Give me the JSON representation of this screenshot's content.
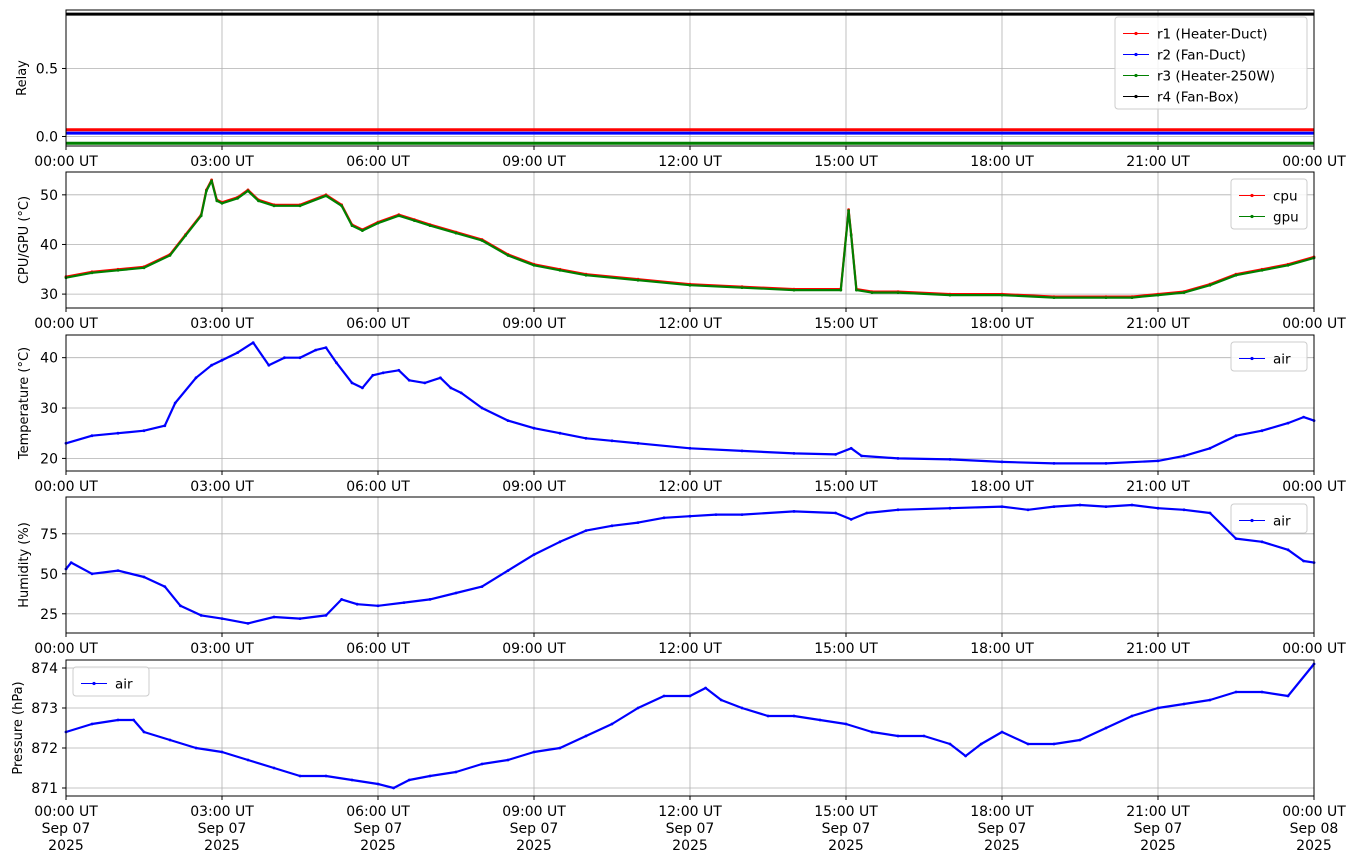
{
  "x_tick_labels": [
    "00:00 UT",
    "03:00 UT",
    "06:00 UT",
    "09:00 UT",
    "12:00 UT",
    "15:00 UT",
    "18:00 UT",
    "21:00 UT",
    "00:00 UT"
  ],
  "x_date_labels": [
    "Sep 07",
    "Sep 07",
    "Sep 07",
    "Sep 07",
    "Sep 07",
    "Sep 07",
    "Sep 07",
    "Sep 07",
    "Sep 08"
  ],
  "x_year_labels": [
    "2025",
    "2025",
    "2025",
    "2025",
    "2025",
    "2025",
    "2025",
    "2025",
    "2025"
  ],
  "chart_data": [
    {
      "type": "line",
      "ylabel": "Relay",
      "x_unit": "hours since 2025-09-07 00:00 UT",
      "xlim": [
        0,
        24
      ],
      "ylim": [
        -0.07,
        0.93
      ],
      "yticks": [
        0.0,
        0.5
      ],
      "ytick_labels": [
        "0.0",
        "0.5"
      ],
      "legend_loc": "upper right",
      "grid": true,
      "series": [
        {
          "name": "r1 (Heater-Duct)",
          "color": "#ff0000",
          "x": [
            0,
            24
          ],
          "y": [
            0.05,
            0.05
          ]
        },
        {
          "name": "r2 (Fan-Duct)",
          "color": "#0000ff",
          "x": [
            0,
            24
          ],
          "y": [
            0.025,
            0.025
          ]
        },
        {
          "name": "r3 (Heater-250W)",
          "color": "#008000",
          "x": [
            0,
            24
          ],
          "y": [
            -0.05,
            -0.05
          ]
        },
        {
          "name": "r4 (Fan-Box)",
          "color": "#000000",
          "x": [
            0,
            24
          ],
          "y": [
            0.9,
            0.9
          ]
        }
      ]
    },
    {
      "type": "line",
      "ylabel": "CPU/GPU (°C)",
      "xlim": [
        0,
        24
      ],
      "ylim": [
        27.2,
        54.6
      ],
      "yticks": [
        30,
        40,
        50
      ],
      "ytick_labels": [
        "30",
        "40",
        "50"
      ],
      "legend_loc": "upper right",
      "grid": true,
      "series": [
        {
          "name": "cpu",
          "color": "#ff0000",
          "x": [
            0,
            0.5,
            1,
            1.5,
            2,
            2.3,
            2.6,
            2.7,
            2.8,
            2.9,
            3.0,
            3.3,
            3.5,
            3.7,
            4.0,
            4.5,
            5.0,
            5.3,
            5.5,
            5.7,
            6.0,
            6.4,
            6.7,
            7.0,
            7.5,
            8.0,
            8.5,
            9.0,
            9.5,
            10,
            11,
            12,
            13,
            14,
            14.9,
            15.05,
            15.1,
            15.2,
            15.5,
            16,
            17,
            18,
            19,
            20,
            20.5,
            21,
            21.5,
            22,
            22.5,
            23,
            23.5,
            24
          ],
          "y": [
            33.5,
            34.5,
            35,
            35.5,
            38,
            42,
            46,
            51,
            53,
            49,
            48.5,
            49.5,
            51,
            49,
            48,
            48,
            50,
            48,
            44,
            43,
            44.5,
            46,
            45,
            44,
            42.5,
            41,
            38,
            36,
            35,
            34,
            33,
            32,
            31.5,
            31,
            31,
            47,
            42,
            31,
            30.5,
            30.5,
            30,
            30,
            29.5,
            29.5,
            29.5,
            30,
            30.5,
            32,
            34,
            35,
            36,
            37.5
          ]
        },
        {
          "name": "gpu",
          "color": "#008000",
          "x": [
            0,
            0.5,
            1,
            1.5,
            2,
            2.3,
            2.6,
            2.7,
            2.8,
            2.9,
            3.0,
            3.3,
            3.5,
            3.7,
            4.0,
            4.5,
            5.0,
            5.3,
            5.5,
            5.7,
            6.0,
            6.4,
            6.7,
            7.0,
            7.5,
            8.0,
            8.5,
            9.0,
            9.5,
            10,
            11,
            12,
            13,
            14,
            14.9,
            15.05,
            15.1,
            15.2,
            15.5,
            16,
            17,
            18,
            19,
            20,
            20.5,
            21,
            21.5,
            22,
            22.5,
            23,
            23.5,
            24
          ],
          "y": [
            33.3,
            34.3,
            34.8,
            35.3,
            37.8,
            41.8,
            45.8,
            50.8,
            52.8,
            48.8,
            48.3,
            49.3,
            50.8,
            48.8,
            47.8,
            47.8,
            49.8,
            47.8,
            43.8,
            42.8,
            44.3,
            45.8,
            44.8,
            43.8,
            42.3,
            40.8,
            37.8,
            35.8,
            34.8,
            33.8,
            32.8,
            31.8,
            31.3,
            30.8,
            30.8,
            46.8,
            41.8,
            30.8,
            30.3,
            30.3,
            29.8,
            29.8,
            29.3,
            29.3,
            29.3,
            29.8,
            30.3,
            31.8,
            33.8,
            34.8,
            35.8,
            37.3
          ]
        }
      ]
    },
    {
      "type": "line",
      "ylabel": "Temperature (°C)",
      "xlim": [
        0,
        24
      ],
      "ylim": [
        17.5,
        44.5
      ],
      "yticks": [
        20,
        30,
        40
      ],
      "ytick_labels": [
        "20",
        "30",
        "40"
      ],
      "legend_loc": "upper right",
      "grid": true,
      "series": [
        {
          "name": "air",
          "color": "#0000ff",
          "x": [
            0,
            0.5,
            1,
            1.5,
            1.9,
            2.1,
            2.5,
            2.8,
            3.0,
            3.3,
            3.6,
            3.9,
            4.2,
            4.5,
            4.8,
            5.0,
            5.2,
            5.5,
            5.7,
            5.9,
            6.1,
            6.4,
            6.6,
            6.9,
            7.2,
            7.4,
            7.6,
            8.0,
            8.5,
            9.0,
            9.5,
            10.0,
            10.5,
            11,
            12,
            13,
            14,
            14.8,
            15.1,
            15.3,
            16,
            17,
            18,
            19,
            20,
            21,
            21.5,
            22,
            22.5,
            23,
            23.5,
            23.8,
            24
          ],
          "y": [
            23,
            24.5,
            25,
            25.5,
            26.5,
            31,
            36,
            38.5,
            39.5,
            41,
            43,
            38.5,
            40,
            40,
            41.5,
            42,
            39,
            35,
            34,
            36.5,
            37,
            37.5,
            35.5,
            35,
            36,
            34,
            33,
            30,
            27.5,
            26,
            25,
            24,
            23.5,
            23,
            22,
            21.5,
            21,
            20.8,
            22,
            20.5,
            20,
            19.8,
            19.3,
            19,
            19,
            19.5,
            20.5,
            22,
            24.5,
            25.5,
            27,
            28.2,
            27.5
          ]
        }
      ]
    },
    {
      "type": "line",
      "ylabel": "Humidity (%)",
      "xlim": [
        0,
        24
      ],
      "ylim": [
        13,
        98
      ],
      "yticks": [
        25,
        50,
        75
      ],
      "ytick_labels": [
        "25",
        "50",
        "75"
      ],
      "legend_loc": "upper right",
      "grid": true,
      "series": [
        {
          "name": "air",
          "color": "#0000ff",
          "x": [
            0,
            0.1,
            0.5,
            1.0,
            1.5,
            1.9,
            2.2,
            2.6,
            3.0,
            3.5,
            4.0,
            4.5,
            5.0,
            5.3,
            5.6,
            6.0,
            6.5,
            7.0,
            7.5,
            8.0,
            8.5,
            9.0,
            9.5,
            10,
            10.5,
            11,
            11.5,
            12,
            12.5,
            13,
            14,
            14.8,
            15.1,
            15.4,
            16,
            17,
            18,
            18.5,
            19,
            19.5,
            20,
            20.5,
            21,
            21.5,
            22,
            22.5,
            23,
            23.5,
            23.8,
            24
          ],
          "y": [
            53,
            57,
            50,
            52,
            48,
            42,
            30,
            24,
            22,
            19,
            23,
            22,
            24,
            34,
            31,
            30,
            32,
            34,
            38,
            42,
            52,
            62,
            70,
            77,
            80,
            82,
            85,
            86,
            87,
            87,
            89,
            88,
            84,
            88,
            90,
            91,
            92,
            90,
            92,
            93,
            92,
            93,
            91,
            90,
            88,
            72,
            70,
            65,
            58,
            57
          ]
        }
      ]
    },
    {
      "type": "line",
      "ylabel": "Pressure (hPa)",
      "xlim": [
        0,
        24
      ],
      "ylim": [
        870.8,
        874.2
      ],
      "yticks": [
        871,
        872,
        873,
        874
      ],
      "ytick_labels": [
        "871",
        "872",
        "873",
        "874"
      ],
      "legend_loc": "upper left",
      "grid": true,
      "series": [
        {
          "name": "air",
          "color": "#0000ff",
          "x": [
            0,
            0.5,
            1.0,
            1.3,
            1.5,
            2.0,
            2.5,
            3.0,
            3.5,
            4.0,
            4.5,
            5.0,
            5.5,
            6.0,
            6.3,
            6.6,
            7.0,
            7.5,
            8.0,
            8.5,
            9.0,
            9.5,
            10,
            10.5,
            11,
            11.5,
            12,
            12.3,
            12.6,
            13,
            13.5,
            14,
            14.5,
            15,
            15.5,
            16,
            16.5,
            17,
            17.3,
            17.6,
            18,
            18.5,
            19,
            19.5,
            20,
            20.5,
            21,
            21.5,
            22,
            22.5,
            23,
            23.5,
            24
          ],
          "y": [
            872.4,
            872.6,
            872.7,
            872.7,
            872.4,
            872.2,
            872.0,
            871.9,
            871.7,
            871.5,
            871.3,
            871.3,
            871.2,
            871.1,
            871.0,
            871.2,
            871.3,
            871.4,
            871.6,
            871.7,
            871.9,
            872.0,
            872.3,
            872.6,
            873.0,
            873.3,
            873.3,
            873.5,
            873.2,
            873.0,
            872.8,
            872.8,
            872.7,
            872.6,
            872.4,
            872.3,
            872.3,
            872.1,
            871.8,
            872.1,
            872.4,
            872.1,
            872.1,
            872.2,
            872.5,
            872.8,
            873.0,
            873.1,
            873.2,
            873.4,
            873.4,
            873.3,
            874.1
          ]
        }
      ]
    }
  ]
}
